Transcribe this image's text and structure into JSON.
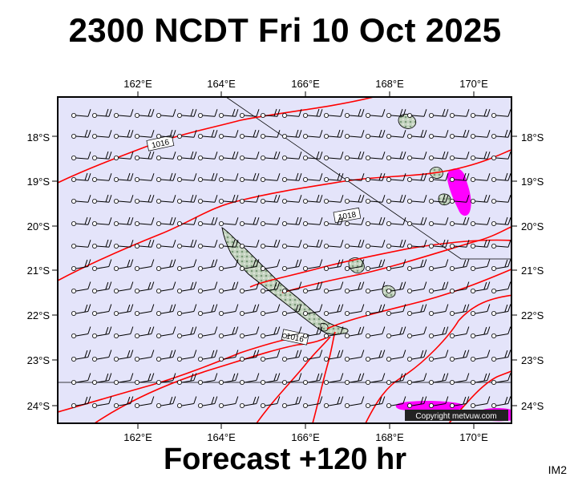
{
  "title": "2300 NCDT Fri 10 Oct 2025",
  "footer": "Forecast +120 hr",
  "image_code": "IM2",
  "copyright": "Copyright metvuw.com",
  "longitude_labels": [
    "162°E",
    "164°E",
    "166°E",
    "168°E",
    "170°E"
  ],
  "latitude_labels": [
    "18°S",
    "19°S",
    "20°S",
    "21°S",
    "22°S",
    "23°S",
    "24°S"
  ],
  "isobar_labels": [
    "1016",
    "1018",
    "1016"
  ],
  "colors": {
    "ocean": "#e4e4fa",
    "isobar": "#ff0000",
    "rain": "#ff00ff",
    "land": "#bcccb8",
    "frame": "#000000"
  },
  "icons": {
    "wind_barb": "wind-barb-icon",
    "station": "station-circle-icon"
  }
}
